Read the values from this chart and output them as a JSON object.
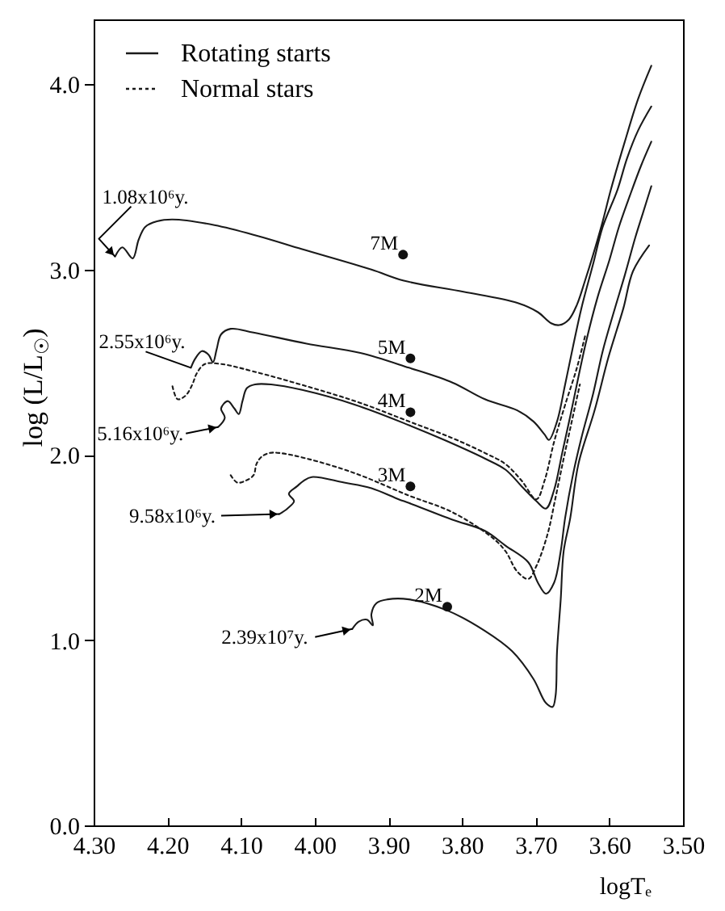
{
  "chart_data": {
    "type": "line",
    "xlabel": "logTₑ",
    "ylabel": "log (L/L$_{☉}$)",
    "xlim": [
      4.3,
      3.5
    ],
    "ylim": [
      0,
      4.35
    ],
    "xticks": [
      {
        "value": 4.3,
        "label": "4.30"
      },
      {
        "value": 4.2,
        "label": "4.20"
      },
      {
        "value": 4.1,
        "label": "4.10"
      },
      {
        "value": 4.0,
        "label": "4.00"
      },
      {
        "value": 3.9,
        "label": "3.90"
      },
      {
        "value": 3.8,
        "label": "3.80"
      },
      {
        "value": 3.7,
        "label": "3.70"
      },
      {
        "value": 3.6,
        "label": "3.60"
      },
      {
        "value": 3.5,
        "label": "3.50"
      }
    ],
    "yticks": [
      {
        "value": 0,
        "label": "0.0"
      },
      {
        "value": 1,
        "label": "1.0"
      },
      {
        "value": 2,
        "label": "2.0"
      },
      {
        "value": 3,
        "label": "3.0"
      },
      {
        "value": 4,
        "label": "4.0"
      }
    ],
    "legend": "top left",
    "series": [
      {
        "name": "Rotating starts",
        "color": "#1a1a1a",
        "line_style": "solid",
        "x": [
          4.271,
          4.261,
          4.247,
          4.239,
          4.23,
          4.214,
          4.193,
          4.136,
          4.076,
          4.017,
          3.923,
          3.879,
          3.798,
          3.725,
          3.697,
          3.679,
          3.668,
          3.655,
          3.644,
          3.633,
          3.622,
          3.609,
          3.598,
          3.579,
          3.561,
          3.543,
          null,
          4.168,
          4.162,
          4.153,
          4.144,
          4.138,
          4.133,
          4.127,
          4.114,
          4.083,
          4.011,
          3.938,
          3.872,
          3.813,
          3.769,
          3.725,
          3.703,
          3.688,
          3.682,
          3.671,
          3.66,
          3.649,
          3.638,
          3.622,
          3.609,
          3.589,
          3.576,
          3.561,
          3.543,
          null,
          4.131,
          4.122,
          4.127,
          4.118,
          4.109,
          4.103,
          4.098,
          4.092,
          4.081,
          4.059,
          4.017,
          3.945,
          3.872,
          3.824,
          3.769,
          3.741,
          3.719,
          3.699,
          3.686,
          3.675,
          3.664,
          3.653,
          3.642,
          3.631,
          3.616,
          3.6,
          3.587,
          3.572,
          3.557,
          3.543,
          null,
          4.048,
          4.037,
          4.028,
          4.035,
          4.024,
          4.015,
          4.004,
          3.96,
          3.923,
          3.886,
          3.872,
          3.813,
          3.769,
          3.741,
          3.71,
          3.697,
          3.686,
          3.675,
          3.666,
          3.66,
          3.649,
          3.638,
          3.622,
          3.609,
          3.594,
          3.579,
          3.565,
          3.554,
          3.543,
          null,
          3.949,
          3.94,
          3.929,
          3.921,
          3.923,
          3.916,
          3.901,
          3.872,
          3.82,
          3.769,
          3.732,
          3.703,
          3.686,
          3.677,
          3.673,
          3.671,
          3.666,
          3.662,
          3.653,
          3.642,
          3.62,
          3.601,
          3.581,
          3.568,
          3.546
        ],
        "values": [
          3.07,
          3.12,
          3.06,
          3.16,
          3.23,
          3.26,
          3.27,
          3.24,
          3.18,
          3.11,
          3.0,
          2.94,
          2.88,
          2.82,
          2.77,
          2.71,
          2.7,
          2.73,
          2.81,
          2.94,
          3.08,
          3.26,
          3.43,
          3.69,
          3.92,
          4.1,
          null,
          2.47,
          2.52,
          2.56,
          2.54,
          2.5,
          2.57,
          2.65,
          2.68,
          2.66,
          2.6,
          2.55,
          2.47,
          2.39,
          2.3,
          2.24,
          2.18,
          2.11,
          2.08,
          2.18,
          2.38,
          2.59,
          2.79,
          3.03,
          3.23,
          3.43,
          3.6,
          3.75,
          3.88,
          null,
          2.15,
          2.2,
          2.25,
          2.29,
          2.25,
          2.22,
          2.29,
          2.36,
          2.38,
          2.38,
          2.35,
          2.27,
          2.16,
          2.08,
          1.98,
          1.92,
          1.83,
          1.75,
          1.71,
          1.81,
          2.01,
          2.21,
          2.42,
          2.62,
          2.85,
          3.05,
          3.23,
          3.4,
          3.56,
          3.69,
          null,
          1.68,
          1.71,
          1.75,
          1.79,
          1.83,
          1.86,
          1.88,
          1.85,
          1.82,
          1.76,
          1.74,
          1.65,
          1.59,
          1.51,
          1.42,
          1.31,
          1.25,
          1.31,
          1.48,
          1.66,
          1.9,
          2.09,
          2.33,
          2.56,
          2.77,
          2.97,
          3.17,
          3.31,
          3.45,
          null,
          1.06,
          1.1,
          1.11,
          1.08,
          1.14,
          1.2,
          1.22,
          1.22,
          1.16,
          1.05,
          0.94,
          0.79,
          0.66,
          0.64,
          0.7,
          0.94,
          1.22,
          1.48,
          1.66,
          1.95,
          2.24,
          2.53,
          2.79,
          2.99,
          3.13
        ]
      },
      {
        "name": "Normal stars",
        "color": "#1a1a1a",
        "line_style": "dotted",
        "x": [
          4.193,
          4.186,
          4.175,
          4.166,
          4.16,
          4.149,
          4.127,
          4.083,
          4.011,
          3.938,
          3.872,
          3.813,
          3.769,
          3.741,
          3.719,
          3.699,
          3.688,
          3.675,
          3.66,
          3.644,
          3.633,
          null,
          4.114,
          4.105,
          4.094,
          4.083,
          4.079,
          4.072,
          4.061,
          4.048,
          4.011,
          3.945,
          3.872,
          3.813,
          3.758,
          3.741,
          3.725,
          3.71,
          3.699,
          3.684,
          3.673,
          3.662,
          3.651,
          3.64
        ],
        "values": [
          2.37,
          2.3,
          2.32,
          2.38,
          2.44,
          2.49,
          2.49,
          2.45,
          2.37,
          2.28,
          2.18,
          2.09,
          2.01,
          1.95,
          1.86,
          1.76,
          1.86,
          2.07,
          2.27,
          2.47,
          2.64,
          null,
          1.89,
          1.85,
          1.86,
          1.89,
          1.95,
          1.99,
          2.01,
          2.01,
          1.98,
          1.9,
          1.78,
          1.69,
          1.55,
          1.48,
          1.37,
          1.33,
          1.4,
          1.57,
          1.77,
          1.98,
          2.18,
          2.38
        ]
      },
      {
        "type": "scatter",
        "marker": "circle",
        "color": "#111111",
        "x": [
          3.88,
          3.87,
          3.87,
          3.87,
          3.82
        ],
        "values": [
          3.08,
          2.52,
          2.23,
          1.83,
          1.18
        ]
      }
    ],
    "annotations": [
      {
        "text": "1.08x10⁶y.",
        "x": 4.271,
        "y": 3.07
      },
      {
        "text": "2.55x10⁶y.",
        "x": 4.168,
        "y": 2.47
      },
      {
        "text": "5.16x10⁶y.",
        "x": 4.131,
        "y": 2.15
      },
      {
        "text": "9.58x10⁶y.",
        "x": 4.048,
        "y": 1.68
      },
      {
        "text": "2.39x10⁷y.",
        "x": 3.949,
        "y": 1.06
      },
      {
        "text": "7M",
        "x": 3.88,
        "y": 3.08
      },
      {
        "text": "5M",
        "x": 3.87,
        "y": 2.52
      },
      {
        "text": "4M",
        "x": 3.87,
        "y": 2.23
      },
      {
        "text": "3M",
        "x": 3.87,
        "y": 1.83
      },
      {
        "text": "2M",
        "x": 3.82,
        "y": 1.18
      }
    ]
  }
}
